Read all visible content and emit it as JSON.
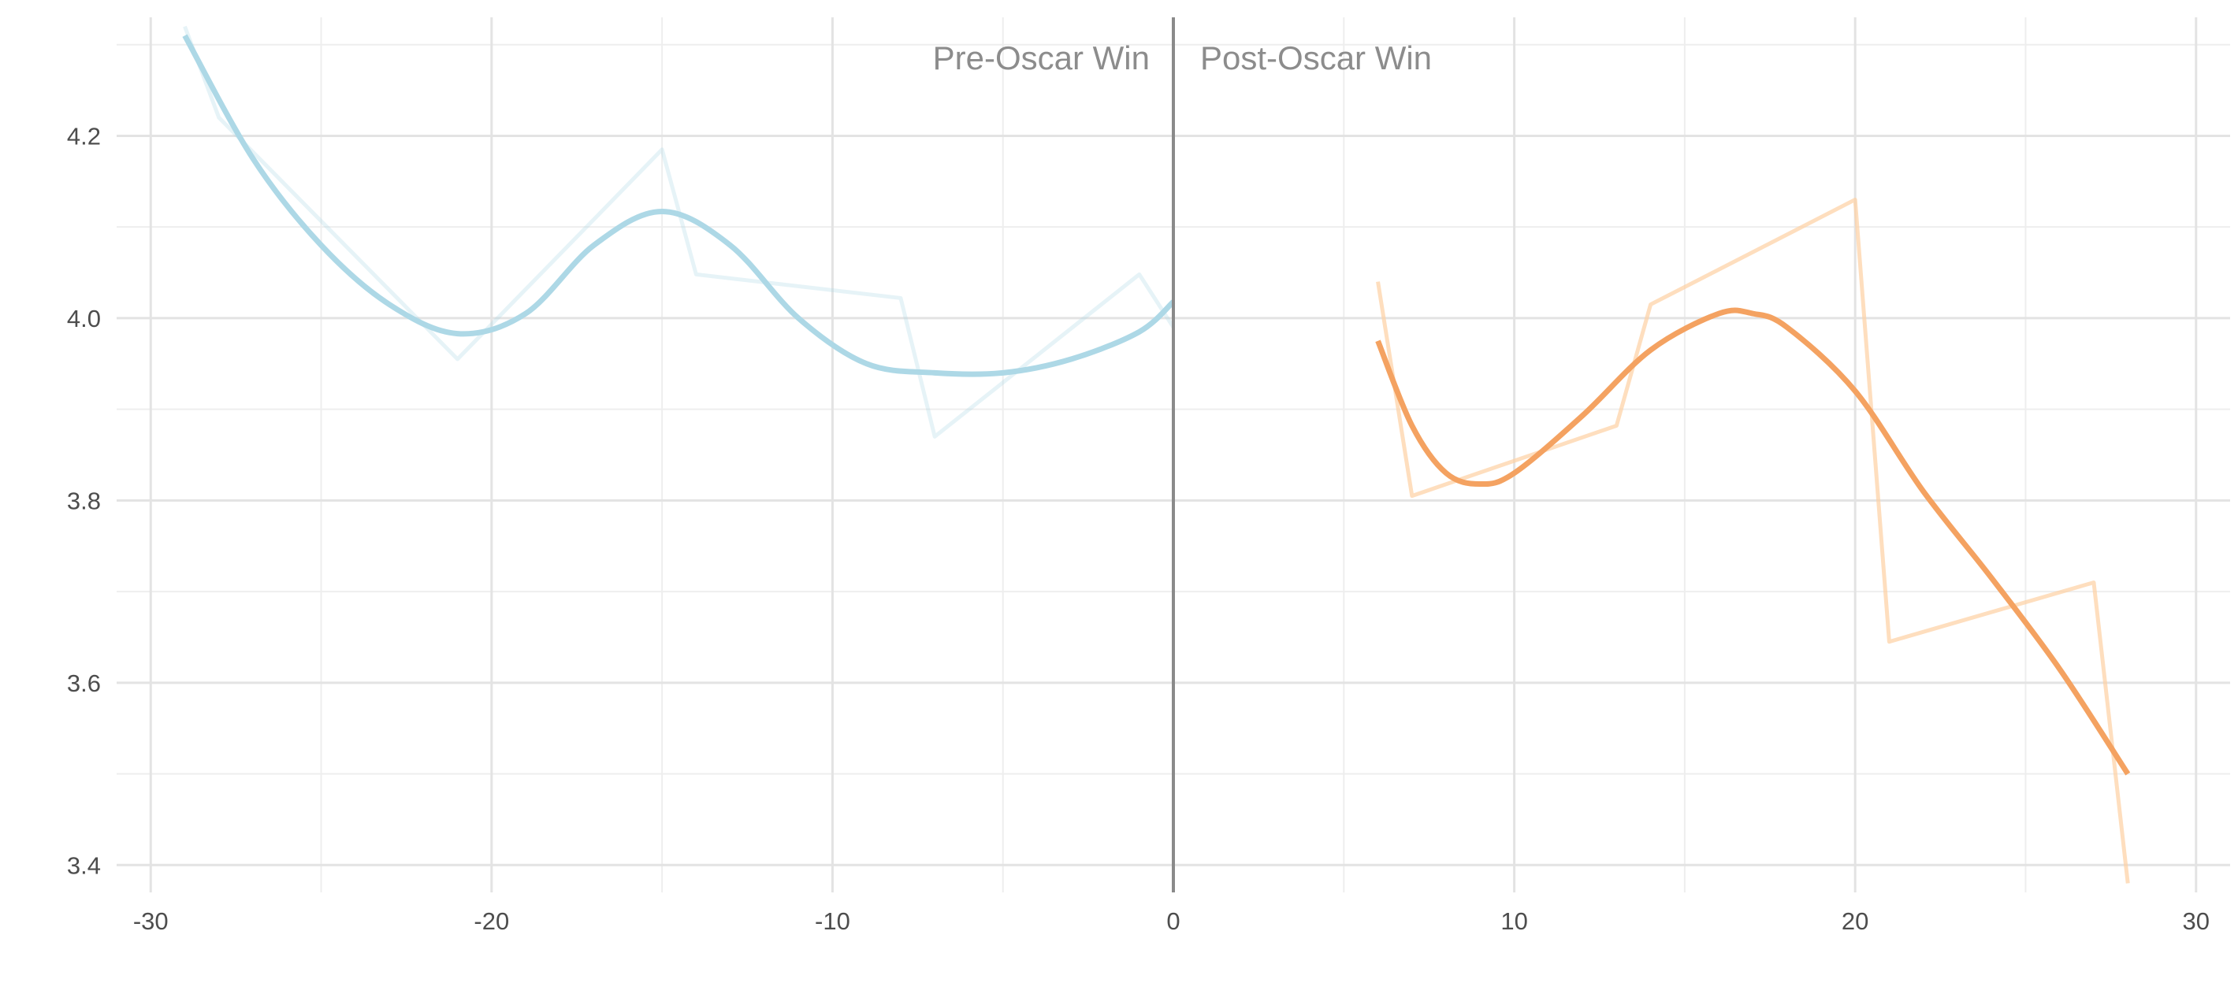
{
  "chart_data": {
    "type": "line",
    "xlim": [
      -31,
      31
    ],
    "ylim": [
      3.37,
      4.33
    ],
    "x_ticks": [
      -30,
      -20,
      -10,
      0,
      10,
      20,
      30
    ],
    "y_ticks": [
      3.4,
      3.6,
      3.8,
      4.0,
      4.2
    ],
    "x_tick_labels": [
      "-30",
      "-20",
      "-10",
      "0",
      "10",
      "20",
      "30"
    ],
    "y_tick_labels": [
      "3.4",
      "3.6",
      "3.8",
      "4.0",
      "4.2"
    ],
    "grid": true,
    "vline_x": 0,
    "annotations": [
      {
        "text": "Pre-Oscar Win",
        "x": 0,
        "side": "left"
      },
      {
        "text": "Post-Oscar Win",
        "x": 0,
        "side": "right"
      }
    ],
    "series": [
      {
        "role": "raw",
        "color": "#add8e6",
        "opacity": 0.3,
        "x": [
          -29,
          -28,
          -21,
          -15,
          -14,
          -8,
          -7,
          -1,
          0
        ],
        "y": [
          4.32,
          4.22,
          3.955,
          4.185,
          4.048,
          4.022,
          3.87,
          4.048,
          3.99
        ]
      },
      {
        "role": "smooth",
        "color": "#add8e6",
        "opacity": 1,
        "x": [
          -29,
          -27,
          -25,
          -23,
          -21,
          -19,
          -17,
          -15,
          -13,
          -11,
          -9,
          -7,
          -5,
          -3,
          -1,
          0
        ],
        "y": [
          4.31,
          4.175,
          4.08,
          4.015,
          3.983,
          4.005,
          4.08,
          4.117,
          4.08,
          4.0,
          3.95,
          3.94,
          3.94,
          3.955,
          3.985,
          4.018
        ]
      },
      {
        "role": "raw",
        "color": "#fdd0a2",
        "opacity": 0.7,
        "x": [
          6,
          7,
          13,
          14,
          20,
          21,
          27,
          28
        ],
        "y": [
          4.04,
          3.805,
          3.882,
          4.015,
          4.13,
          3.645,
          3.71,
          3.38
        ]
      },
      {
        "role": "smooth",
        "color": "#f4a261",
        "opacity": 1,
        "x": [
          6,
          7,
          8,
          9,
          10,
          12,
          14,
          16,
          17,
          18,
          20,
          22,
          24,
          26,
          28
        ],
        "y": [
          3.975,
          3.882,
          3.83,
          3.818,
          3.83,
          3.893,
          3.965,
          4.005,
          4.005,
          3.99,
          3.92,
          3.81,
          3.715,
          3.615,
          3.5
        ]
      }
    ]
  }
}
